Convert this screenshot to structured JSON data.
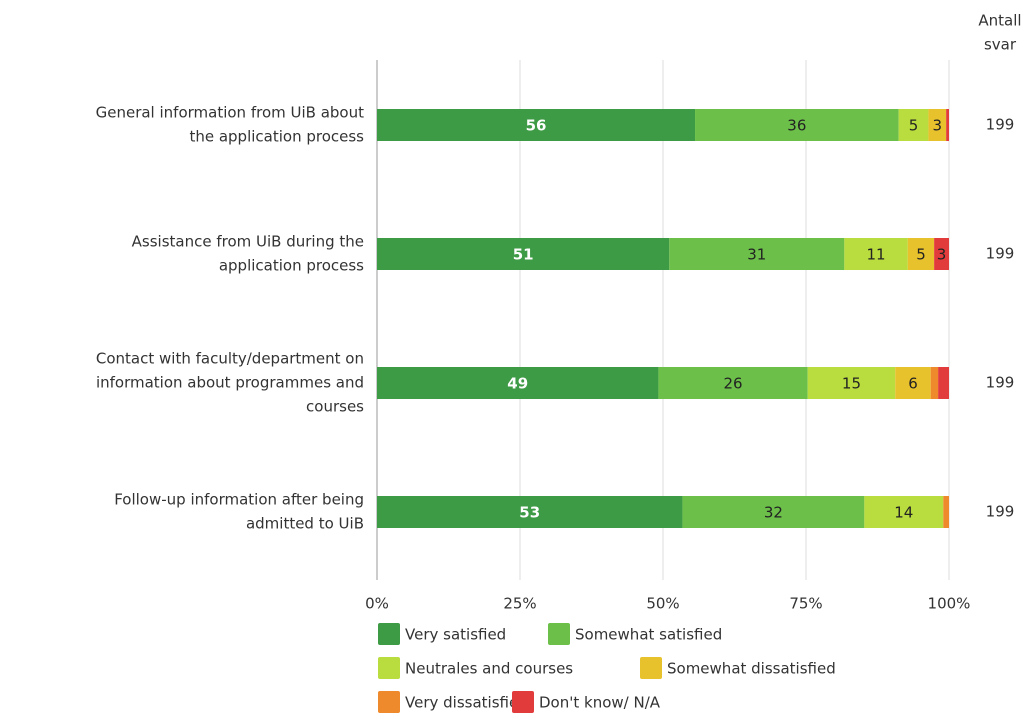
{
  "chart_data": {
    "type": "stacked-bar-horizontal",
    "categories": [
      [
        "General information from UiB about",
        "the application process"
      ],
      [
        "Assistance from UiB during the",
        "application process"
      ],
      [
        "Contact with faculty/department on",
        "information about programmes and",
        "courses"
      ],
      [
        "Follow-up information after being",
        "admitted to UiB"
      ]
    ],
    "series": [
      {
        "name": "Very satisfied",
        "color": "#3d9a45",
        "values": [
          55.6,
          51.1,
          49.2,
          53.4
        ],
        "value_labels": [
          "56",
          "51",
          "49",
          "53"
        ]
      },
      {
        "name": "Somewhat satisfied",
        "color": "#6cc04a",
        "values": [
          35.6,
          30.6,
          26.1,
          31.8
        ],
        "value_labels": [
          "36",
          "31",
          "26",
          "32"
        ]
      },
      {
        "name": "Neutrales and courses",
        "color": "#b9dc3e",
        "values": [
          5.2,
          11.1,
          15.3,
          13.8
        ],
        "value_labels": [
          "5",
          "11",
          "15",
          "14"
        ]
      },
      {
        "name": "Somewhat dissatisfied",
        "color": "#e8c22c",
        "values": [
          3.1,
          4.6,
          6.2,
          0
        ],
        "value_labels": [
          "3",
          "5",
          "6",
          null
        ]
      },
      {
        "name": "Very dissatisfied",
        "color": "#ef8a2c",
        "values": [
          0,
          0,
          1.3,
          1.0
        ],
        "value_labels": [
          null,
          null,
          null,
          null
        ]
      },
      {
        "name": "Don't know/ N/A",
        "color": "#e23b3b",
        "values": [
          0.5,
          2.6,
          1.9,
          0
        ],
        "value_labels": [
          null,
          "3",
          null,
          null
        ]
      }
    ],
    "xlim": [
      0,
      100
    ],
    "xticks": [
      {
        "value": 0,
        "label": "0%"
      },
      {
        "value": 25,
        "label": "25%"
      },
      {
        "value": 50,
        "label": "50%"
      },
      {
        "value": 75,
        "label": "75%"
      },
      {
        "value": 100,
        "label": "100%"
      }
    ],
    "grid": true,
    "responses": {
      "title": [
        "Antall",
        "svar"
      ],
      "values": [
        199,
        199,
        199,
        199
      ]
    }
  }
}
